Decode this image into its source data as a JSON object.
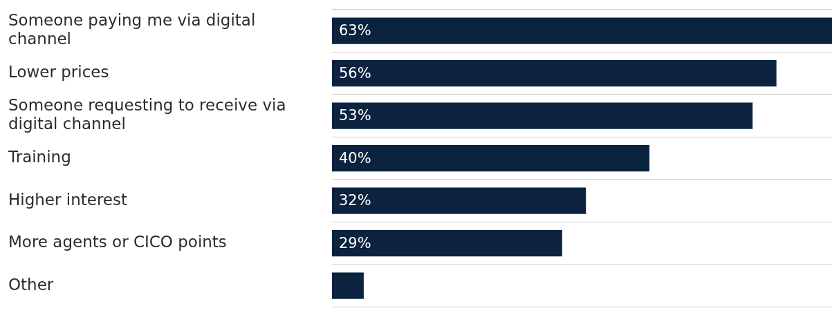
{
  "chart_data": {
    "type": "bar",
    "orientation": "horizontal",
    "categories": [
      "Someone paying me via digital channel",
      "Lower prices",
      "Someone requesting to receive via digital channel",
      "Training",
      "Higher interest",
      "More agents or CICO points",
      "Other"
    ],
    "values": [
      63,
      56,
      53,
      40,
      32,
      29,
      4
    ],
    "value_labels": [
      "63%",
      "56%",
      "53%",
      "40%",
      "32%",
      "29%",
      null
    ],
    "color": "#0c2340",
    "grid": "y",
    "legend": false,
    "tick_labels": "y"
  }
}
